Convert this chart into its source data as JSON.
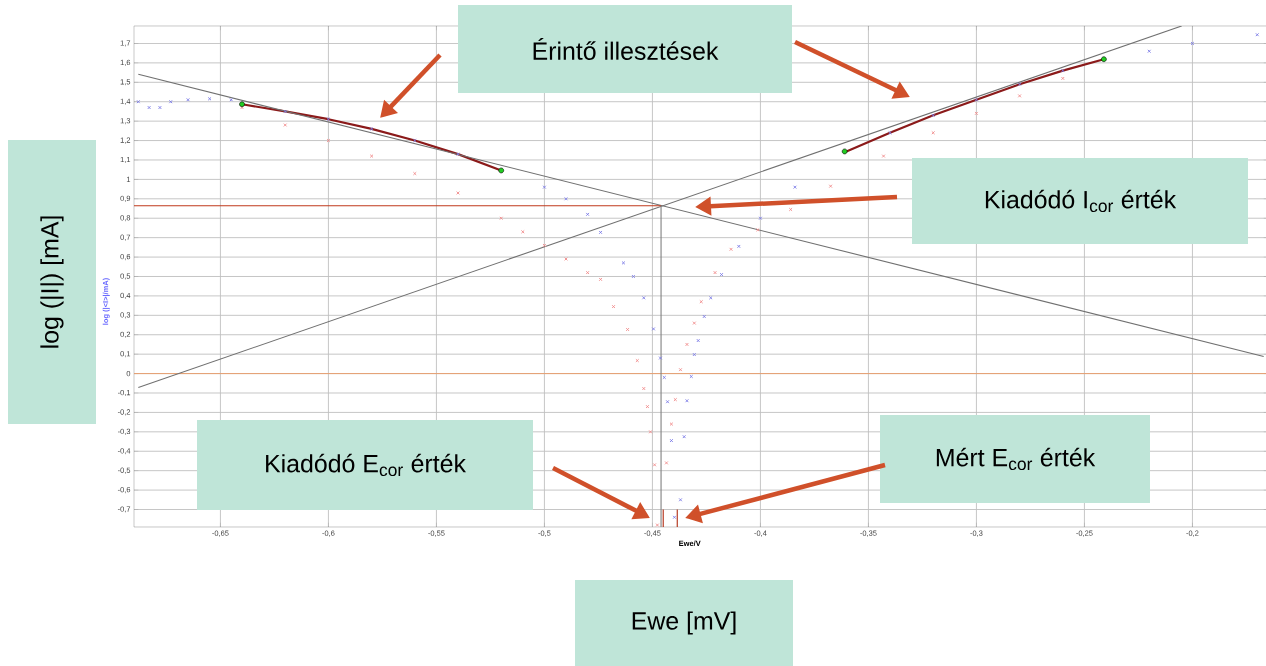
{
  "chart_data": {
    "type": "scatter",
    "xlabel": "Ewe/V",
    "ylabel": "log (|<I>|/mA)",
    "xlim": [
      -0.69,
      -0.165
    ],
    "ylim": [
      -0.79,
      1.79
    ],
    "xticks": [
      {
        "value": -0.65,
        "label": "-0,65"
      },
      {
        "value": -0.6,
        "label": "-0,6"
      },
      {
        "value": -0.55,
        "label": "-0,55"
      },
      {
        "value": -0.5,
        "label": "-0,5"
      },
      {
        "value": -0.45,
        "label": "-0,45"
      },
      {
        "value": -0.4,
        "label": "-0,4"
      },
      {
        "value": -0.35,
        "label": "-0,35"
      },
      {
        "value": -0.3,
        "label": "-0,3"
      },
      {
        "value": -0.25,
        "label": "-0,25"
      },
      {
        "value": -0.2,
        "label": "-0,2"
      }
    ],
    "yticks": [
      {
        "value": -0.7,
        "label": "-0,7"
      },
      {
        "value": -0.6,
        "label": "-0,6"
      },
      {
        "value": -0.5,
        "label": "-0,5"
      },
      {
        "value": -0.4,
        "label": "-0,4"
      },
      {
        "value": -0.3,
        "label": "-0,3"
      },
      {
        "value": -0.2,
        "label": "-0,2"
      },
      {
        "value": -0.1,
        "label": "-0,1"
      },
      0,
      {
        "value": 0.1,
        "label": "0,1"
      },
      {
        "value": 0.2,
        "label": "0,2"
      },
      {
        "value": 0.3,
        "label": "0,3"
      },
      {
        "value": 0.4,
        "label": "0,4"
      },
      {
        "value": 0.5,
        "label": "0,5"
      },
      {
        "value": 0.6,
        "label": "0,6"
      },
      {
        "value": 0.7,
        "label": "0,7"
      },
      {
        "value": 0.8,
        "label": "0,8"
      },
      {
        "value": 0.9,
        "label": "0,9"
      },
      1,
      {
        "value": 1.1,
        "label": "1,1"
      },
      {
        "value": 1.2,
        "label": "1,2"
      },
      {
        "value": 1.3,
        "label": "1,3"
      },
      {
        "value": 1.4,
        "label": "1,4"
      },
      {
        "value": 1.5,
        "label": "1,5"
      },
      {
        "value": 1.6,
        "label": "1,6"
      },
      {
        "value": 1.7,
        "label": "1,7"
      }
    ],
    "grid": true,
    "ref_lines": [
      {
        "axis": "y",
        "value": 0,
        "color": "#e8a070"
      }
    ],
    "series": [
      {
        "marker": "cross",
        "color": "#7b7be6",
        "x": [
          -0.688,
          -0.683,
          -0.678,
          -0.673,
          -0.665,
          -0.655,
          -0.645,
          -0.64,
          -0.62,
          -0.6,
          -0.58,
          -0.56,
          -0.54,
          -0.52,
          -0.5,
          -0.49,
          -0.48,
          -0.474,
          -0.4634,
          -0.4588,
          -0.454,
          -0.4495,
          -0.4463,
          -0.4445,
          -0.443,
          -0.4412,
          -0.4398,
          -0.437,
          -0.4353,
          -0.434,
          -0.432,
          -0.4306,
          -0.4288,
          -0.426,
          -0.423,
          -0.418,
          -0.41,
          -0.4,
          -0.384,
          -0.361,
          -0.34,
          -0.32,
          -0.3,
          -0.28,
          -0.26,
          -0.241,
          -0.22,
          -0.2,
          -0.17
        ],
        "values": [
          1.4,
          1.37,
          1.37,
          1.4,
          1.41,
          1.415,
          1.41,
          null,
          1.35,
          1.31,
          1.26,
          1.2,
          1.13,
          null,
          0.96,
          0.9,
          0.82,
          0.727,
          0.57,
          0.5,
          0.39,
          0.23,
          0.08,
          -0.02,
          -0.145,
          -0.345,
          -0.74,
          -0.65,
          -0.325,
          -0.14,
          -0.015,
          0.098,
          0.17,
          0.294,
          0.39,
          0.51,
          0.655,
          0.8,
          0.96,
          null,
          1.24,
          1.33,
          1.41,
          1.49,
          1.56,
          null,
          1.66,
          1.7,
          1.745
        ]
      },
      {
        "marker": "cross",
        "color": "#f08a8a",
        "x": [
          -0.64,
          -0.62,
          -0.6,
          -0.58,
          -0.56,
          -0.54,
          -0.52,
          -0.51,
          -0.5,
          -0.49,
          -0.48,
          -0.474,
          -0.468,
          -0.4615,
          -0.457,
          -0.454,
          -0.4523,
          -0.4509,
          -0.449,
          -0.4477,
          -0.4435,
          -0.4412,
          -0.4394,
          -0.437,
          -0.434,
          -0.4306,
          -0.4274,
          -0.421,
          -0.4136,
          -0.4012,
          -0.386,
          -0.3675,
          -0.343,
          -0.32,
          -0.3,
          -0.28,
          -0.26
        ],
        "values": [
          1.37,
          1.28,
          1.2,
          1.12,
          1.03,
          0.93,
          0.8,
          0.73,
          0.66,
          0.59,
          0.52,
          0.485,
          0.345,
          0.227,
          0.067,
          -0.077,
          -0.17,
          -0.3,
          -0.47,
          -0.78,
          -0.46,
          -0.26,
          -0.134,
          0.02,
          0.15,
          0.26,
          0.37,
          0.52,
          0.64,
          0.74,
          0.845,
          0.965,
          1.12,
          1.24,
          1.34,
          1.43,
          1.52
        ]
      },
      {
        "type": "line",
        "marker": "none",
        "color": "#8b1a1a",
        "x": [
          -0.64,
          -0.62,
          -0.6,
          -0.58,
          -0.56,
          -0.54,
          -0.52
        ],
        "values": [
          1.387,
          1.35,
          1.31,
          1.26,
          1.2,
          1.13,
          1.046
        ]
      },
      {
        "type": "line",
        "marker": "none",
        "color": "#8b1a1a",
        "x": [
          -0.361,
          -0.34,
          -0.32,
          -0.3,
          -0.28,
          -0.26,
          -0.241
        ],
        "values": [
          1.14,
          1.24,
          1.33,
          1.41,
          1.49,
          1.56,
          1.619
        ]
      },
      {
        "type": "line",
        "marker": "none",
        "color": "#707070",
        "x": [
          -0.688,
          -0.167
        ],
        "values": [
          1.541,
          0.088
        ]
      },
      {
        "type": "line",
        "marker": "none",
        "color": "#707070",
        "x": [
          -0.688,
          -0.205
        ],
        "values": [
          -0.072,
          1.79
        ]
      },
      {
        "type": "line",
        "marker": "none",
        "color": "#c0391b",
        "x": [
          -0.69,
          -0.446
        ],
        "values": [
          0.864,
          0.864
        ]
      },
      {
        "type": "line",
        "marker": "none",
        "color": "#808080",
        "x": [
          -0.446,
          -0.446
        ],
        "values": [
          0.864,
          -0.79
        ]
      },
      {
        "type": "line",
        "marker": "none",
        "color": "#b02a10",
        "x": [
          -0.445,
          -0.445
        ],
        "values": [
          -0.79,
          -0.7
        ]
      },
      {
        "type": "line",
        "marker": "none",
        "color": "#b02a10",
        "x": [
          -0.4385,
          -0.4385
        ],
        "values": [
          -0.79,
          -0.7
        ]
      },
      {
        "marker": "circle",
        "color": "#22cc22",
        "x": [
          -0.64,
          -0.52,
          -0.361,
          -0.241
        ],
        "values": [
          1.387,
          1.046,
          1.144,
          1.619
        ]
      }
    ],
    "annotations": [
      "Érintő illesztések",
      "Kiadódó I$_{cor}$ érték",
      "Kiadódó E$_{cor}$ érték",
      "Mért E$_{cor}$ érték",
      "Ewe [mV]",
      "log (|I|) [mA]"
    ]
  }
}
